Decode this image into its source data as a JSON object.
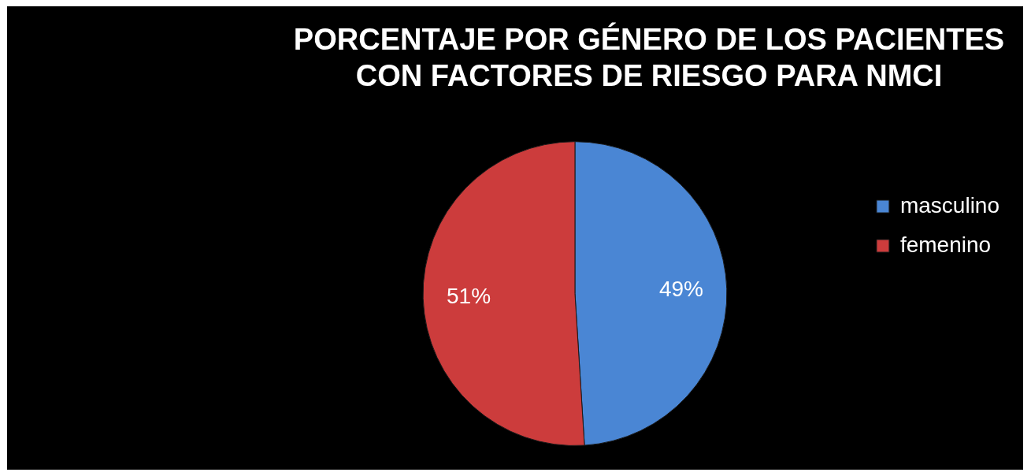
{
  "chart_data": {
    "type": "pie",
    "title": "PORCENTAJE POR GÉNERO DE LOS PACIENTES\nCON FACTORES DE RIESGO PARA NMCI",
    "categories": [
      "masculino",
      "femenino"
    ],
    "values": [
      49,
      51
    ],
    "colors": [
      "#4a86d4",
      "#cc3c3c"
    ],
    "value_labels": [
      "49%",
      "51%"
    ],
    "legend": "right"
  }
}
